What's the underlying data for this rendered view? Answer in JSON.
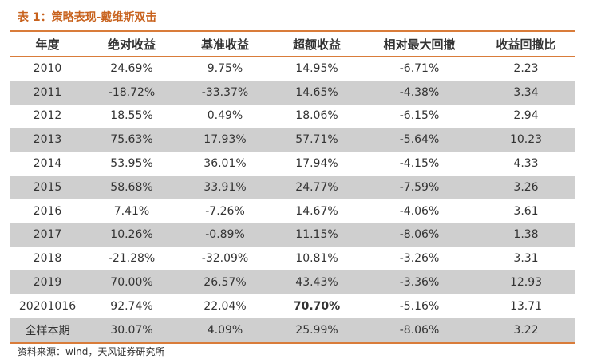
{
  "caption": "表 1：策略表现-戴维斯双击",
  "table": {
    "headers": [
      "年度",
      "绝对收益",
      "基准收益",
      "超额收益",
      "相对最大回撤",
      "收益回撤比"
    ],
    "rows": [
      [
        "2010",
        "24.69%",
        "9.75%",
        "14.95%",
        "-6.71%",
        "2.23"
      ],
      [
        "2011",
        "-18.72%",
        "-33.37%",
        "14.65%",
        "-4.38%",
        "3.34"
      ],
      [
        "2012",
        "18.55%",
        "0.49%",
        "18.06%",
        "-6.15%",
        "2.94"
      ],
      [
        "2013",
        "75.63%",
        "17.93%",
        "57.71%",
        "-5.64%",
        "10.23"
      ],
      [
        "2014",
        "53.95%",
        "36.01%",
        "17.94%",
        "-4.15%",
        "4.33"
      ],
      [
        "2015",
        "58.68%",
        "33.91%",
        "24.77%",
        "-7.59%",
        "3.26"
      ],
      [
        "2016",
        "7.41%",
        "-7.26%",
        "14.67%",
        "-4.06%",
        "3.61"
      ],
      [
        "2017",
        "10.26%",
        "-0.89%",
        "11.15%",
        "-8.06%",
        "1.38"
      ],
      [
        "2018",
        "-21.28%",
        "-32.09%",
        "10.81%",
        "-3.26%",
        "3.31"
      ],
      [
        "2019",
        "70.00%",
        "26.57%",
        "43.43%",
        "-3.36%",
        "12.93"
      ],
      [
        "20201016",
        "92.74%",
        "22.04%",
        "70.70%",
        "-5.16%",
        "13.71"
      ],
      [
        "全样本期",
        "30.07%",
        "4.09%",
        "25.99%",
        "-8.06%",
        "3.22"
      ]
    ]
  },
  "source": "资料来源：wind，天风证券研究所",
  "colors": {
    "accent": "#d97c3a",
    "caption": "#c8621d",
    "alt_row": "#cfcfcf"
  }
}
